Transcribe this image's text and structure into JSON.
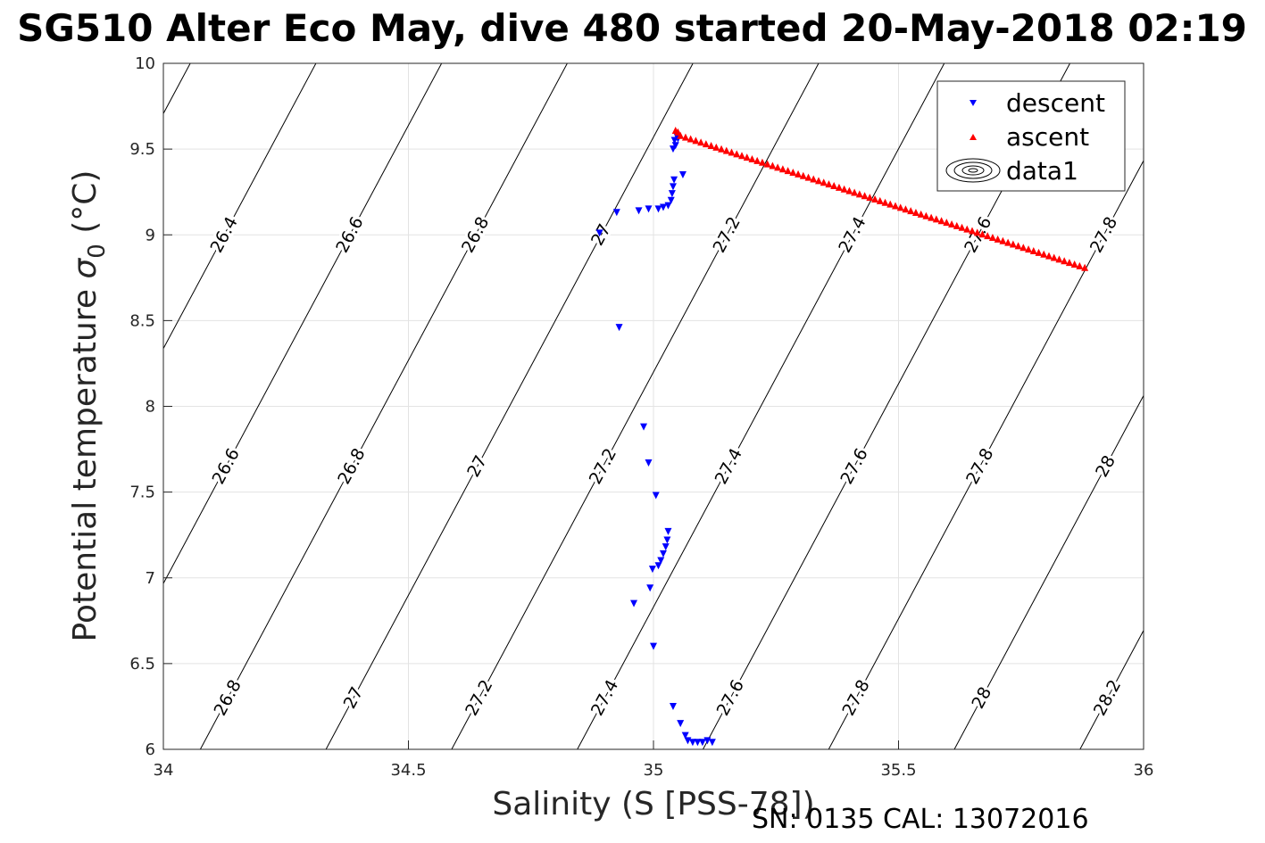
{
  "chart_data": {
    "type": "scatter",
    "title": "SG510 Alter Eco May, dive 480 started 20-May-2018 02:19",
    "xlabel": "Salinity (S [PSS-78])",
    "ylabel": "Potential temperature",
    "ylabel_symbol": "σ",
    "ylabel_sub": "0",
    "ylabel_unit": "(°C)",
    "xlim": [
      34,
      36
    ],
    "ylim": [
      6,
      10
    ],
    "xticks": [
      "34",
      "34.5",
      "35",
      "35.5",
      "36"
    ],
    "yticks": [
      "6",
      "6.5",
      "7",
      "7.5",
      "8",
      "8.5",
      "9",
      "9.5",
      "10"
    ],
    "grid": true,
    "legend": {
      "position": "top-right",
      "entries": [
        "descent",
        "ascent",
        "data1"
      ]
    },
    "contour_levels": [
      "26.4",
      "26.6",
      "26.8",
      "27",
      "27.2",
      "27.4",
      "27.6",
      "27.8",
      "28",
      "28.2"
    ],
    "series": [
      {
        "name": "descent",
        "marker": "triangle-down",
        "color": "#0000ff",
        "points": [
          [
            35.04,
            9.5
          ],
          [
            35.045,
            9.52
          ],
          [
            35.043,
            9.55
          ],
          [
            35.047,
            9.58
          ],
          [
            35.05,
            9.56
          ],
          [
            35.06,
            9.35
          ],
          [
            35.042,
            9.32
          ],
          [
            35.04,
            9.28
          ],
          [
            35.038,
            9.24
          ],
          [
            35.036,
            9.2
          ],
          [
            35.03,
            9.17
          ],
          [
            35.02,
            9.16
          ],
          [
            35.01,
            9.15
          ],
          [
            34.99,
            9.15
          ],
          [
            34.97,
            9.14
          ],
          [
            34.925,
            9.13
          ],
          [
            34.89,
            9.01
          ],
          [
            34.93,
            8.46
          ],
          [
            34.98,
            7.88
          ],
          [
            34.99,
            7.67
          ],
          [
            35.005,
            7.48
          ],
          [
            35.03,
            7.27
          ],
          [
            35.028,
            7.22
          ],
          [
            35.025,
            7.18
          ],
          [
            35.02,
            7.14
          ],
          [
            35.015,
            7.1
          ],
          [
            35.01,
            7.07
          ],
          [
            34.998,
            7.05
          ],
          [
            34.993,
            6.94
          ],
          [
            34.96,
            6.85
          ],
          [
            35.0,
            6.6
          ],
          [
            35.04,
            6.25
          ],
          [
            35.055,
            6.15
          ],
          [
            35.065,
            6.08
          ],
          [
            35.07,
            6.05
          ],
          [
            35.08,
            6.04
          ],
          [
            35.09,
            6.04
          ],
          [
            35.1,
            6.04
          ],
          [
            35.11,
            6.05
          ],
          [
            35.12,
            6.04
          ]
        ]
      },
      {
        "name": "ascent",
        "marker": "triangle-up",
        "color": "#ff0000",
        "line": {
          "from": [
            35.055,
            9.58
          ],
          "to": [
            35.88,
            8.81
          ],
          "count": 80
        },
        "points": [
          [
            35.045,
            9.61
          ],
          [
            35.05,
            9.6
          ]
        ]
      }
    ],
    "annotations": [
      "SN: 0135  CAL: 13072016"
    ]
  }
}
